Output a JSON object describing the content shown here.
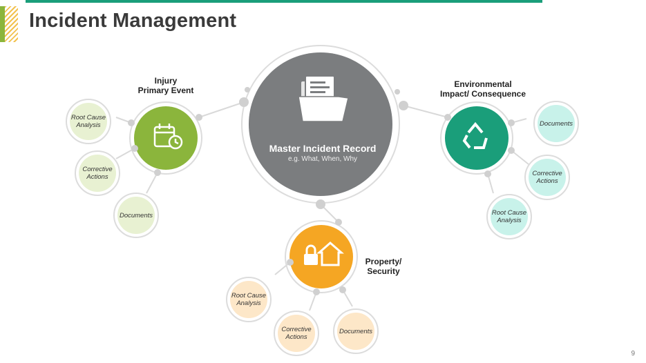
{
  "title": "Incident Management",
  "page_number": "9",
  "colors": {
    "accent_bar": "#1a9e7a",
    "hub": "#7b7d7f",
    "injury": "#8bb53c",
    "injury_light": "#e8f1d2",
    "environmental": "#1a9e7a",
    "environmental_light": "#c8f2ea",
    "property": "#f5a623",
    "property_light": "#fde7c8"
  },
  "hub": {
    "title": "Master Incident Record",
    "subtitle": "e.g. What, When, Why",
    "icon": "document-folder-icon"
  },
  "branches": {
    "injury": {
      "label_line1": "Injury",
      "label_line2": "Primary Event",
      "icon": "calendar-clock-icon",
      "items": [
        "Root Cause Analysis",
        "Corrective Actions",
        "Documents"
      ]
    },
    "environmental": {
      "label_line1": "Environmental",
      "label_line2": "Impact/ Consequence",
      "icon": "recycle-icon",
      "items": [
        "Documents",
        "Corrective Actions",
        "Root Cause Analysis"
      ]
    },
    "property": {
      "label_line1": "Property/",
      "label_line2": "Security",
      "icon": "house-lock-icon",
      "items": [
        "Root Cause Analysis",
        "Corrective Actions",
        "Documents"
      ]
    }
  }
}
